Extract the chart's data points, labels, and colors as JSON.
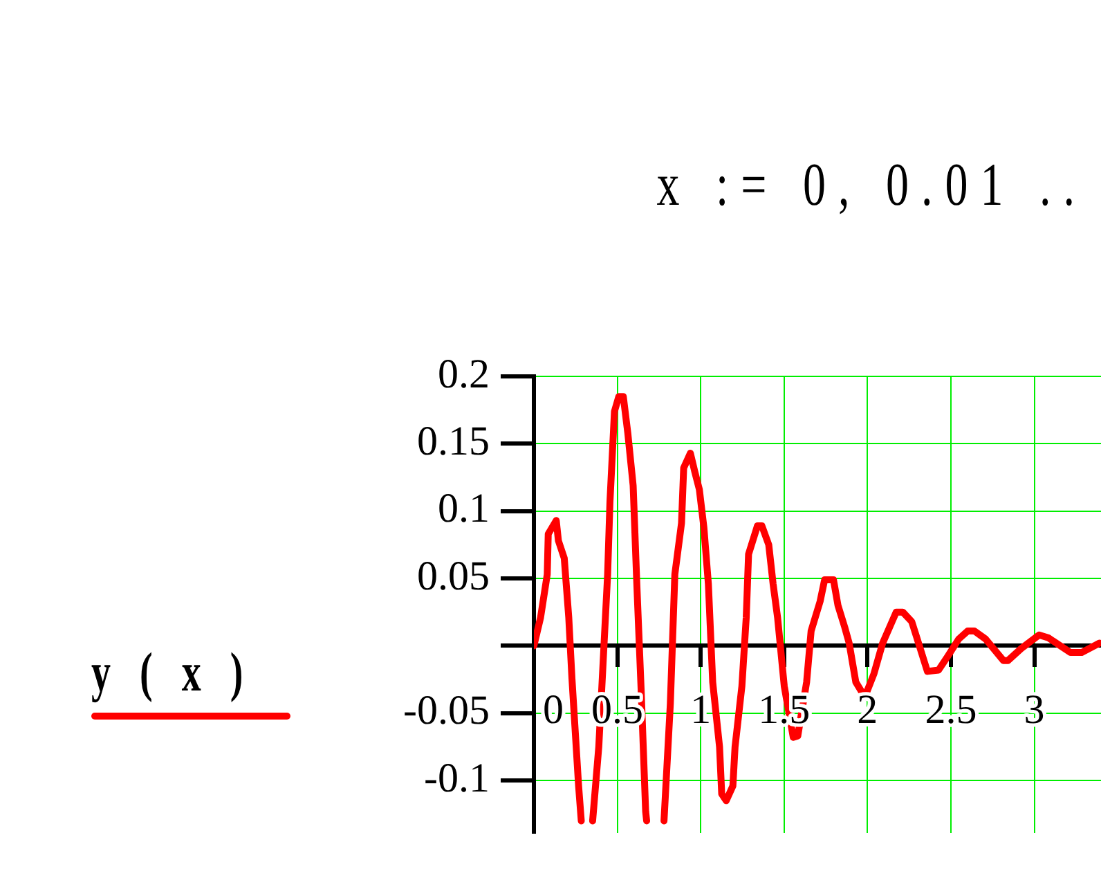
{
  "chart_data": {
    "type": "line",
    "title": "x := 0, 0.01 ..",
    "xlim": [
      0,
      3.4
    ],
    "xticks": [
      0,
      0.5,
      1,
      1.5,
      2,
      2.5,
      3
    ],
    "ylim": [
      -0.139,
      0.2
    ],
    "yticks": [
      0.2,
      0.15,
      0.1,
      0.05,
      {
        "value": 0,
        "label": null
      },
      -0.05,
      -0.1
    ],
    "grid": true,
    "legend": "left",
    "marker": "none",
    "line_style": "solid",
    "series": [
      {
        "name": "y ( x )",
        "color": "#ff0000",
        "x": [
          0,
          0.04,
          0.08,
          0.086,
          0.134,
          0.147,
          0.182,
          0.209,
          0.228,
          0.268,
          0.284,
          0.32,
          0.352,
          0.389,
          0.442,
          0.456,
          0.483,
          0.509,
          0.536,
          0.563,
          0.595,
          0.617,
          0.643,
          0.67,
          0.676,
          0.73,
          0.78,
          0.818,
          0.845,
          0.885,
          0.898,
          0.938,
          0.965,
          0.992,
          1.019,
          1.046,
          1.072,
          1.113,
          1.126,
          1.153,
          1.193,
          1.206,
          1.247,
          1.273,
          1.287,
          1.34,
          1.367,
          1.408,
          1.434,
          1.461,
          1.501,
          1.555,
          1.582,
          1.635,
          1.662,
          1.716,
          1.743,
          1.796,
          1.823,
          1.863,
          1.89,
          1.93,
          1.984,
          2.038,
          2.091,
          2.172,
          2.212,
          2.265,
          2.306,
          2.359,
          2.426,
          2.48,
          2.547,
          2.601,
          2.641,
          2.708,
          2.815,
          2.842,
          2.922,
          3.029,
          3.083,
          3.217,
          3.284,
          3.391
        ],
        "values": [
          0,
          0.021,
          0.053,
          0.083,
          0.093,
          0.078,
          0.065,
          0.021,
          -0.024,
          -0.104,
          -0.13,
          null,
          -0.13,
          -0.075,
          0.053,
          0.107,
          0.174,
          0.185,
          0.185,
          0.158,
          0.119,
          0.046,
          -0.033,
          -0.123,
          -0.13,
          null,
          -0.13,
          -0.043,
          0.053,
          0.091,
          0.132,
          0.143,
          0.129,
          0.116,
          0.088,
          0.046,
          -0.027,
          -0.075,
          -0.11,
          -0.115,
          -0.104,
          -0.075,
          -0.03,
          0.021,
          0.068,
          0.089,
          0.089,
          0.075,
          0.046,
          0.021,
          -0.03,
          -0.068,
          -0.067,
          -0.027,
          0.011,
          0.033,
          0.049,
          0.049,
          0.03,
          0.014,
          0.002,
          -0.027,
          -0.038,
          -0.021,
          0.002,
          0.025,
          0.025,
          0.018,
          0.002,
          -0.019,
          -0.018,
          -0.008,
          0.005,
          0.011,
          0.011,
          0.005,
          -0.011,
          -0.011,
          -0.002,
          0.008,
          0.006,
          -0.005,
          -0.005,
          0.002
        ]
      }
    ]
  }
}
